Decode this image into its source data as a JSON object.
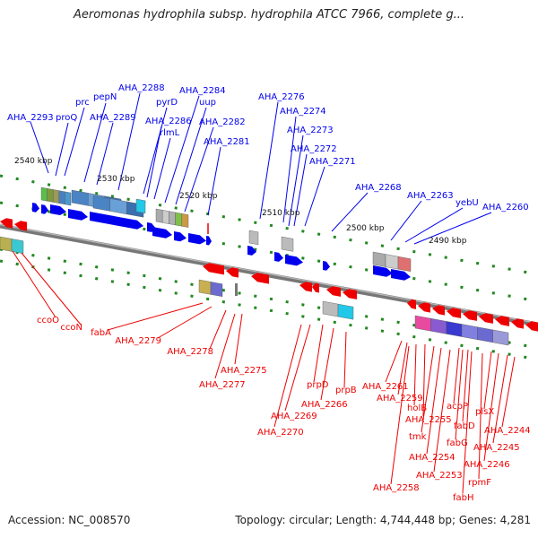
{
  "header": {
    "title": "Aeromonas hydrophila subsp. hydrophila ATCC 7966, complete g..."
  },
  "footer": {
    "accession": "Accession: NC_008570",
    "summary": "Topology: circular; Length: 4,744,448 bp; Genes: 4,281"
  },
  "colors": {
    "forward_strand": "#0000ee",
    "reverse_strand": "#ee0000",
    "backbone": "#777777",
    "tick": "#228822"
  },
  "kbp_labels": [
    "2540 kbp",
    "2530 kbp",
    "2520 kbp",
    "2510 kbp",
    "2500 kbp",
    "2490 kbp"
  ],
  "forward_genes": [
    "AHA_2293",
    "proQ",
    "prc",
    "pepN",
    "AHA_2289",
    "AHA_2288",
    "pyrD",
    "AHA_2286",
    "rlmL",
    "AHA_2284",
    "uup",
    "AHA_2282",
    "AHA_2281",
    "AHA_2276",
    "AHA_2274",
    "AHA_2273",
    "AHA_2272",
    "AHA_2271",
    "AHA_2268",
    "AHA_2263",
    "yebU",
    "AHA_2260"
  ],
  "reverse_genes": [
    "ccoO",
    "ccoN",
    "fabA",
    "AHA_2279",
    "AHA_2278",
    "AHA_2275",
    "AHA_2277",
    "prpD",
    "AHA_2266",
    "prpB",
    "AHA_2269",
    "AHA_2270",
    "AHA_2261",
    "AHA_2259",
    "holB",
    "AHA_2255",
    "tmk",
    "acpP",
    "fabD",
    "plsX",
    "fabG",
    "AHA_2254",
    "AHA_2253",
    "AHA_2258",
    "AHA_2244",
    "AHA_2245",
    "AHA_2246",
    "rpmF",
    "fabH"
  ]
}
